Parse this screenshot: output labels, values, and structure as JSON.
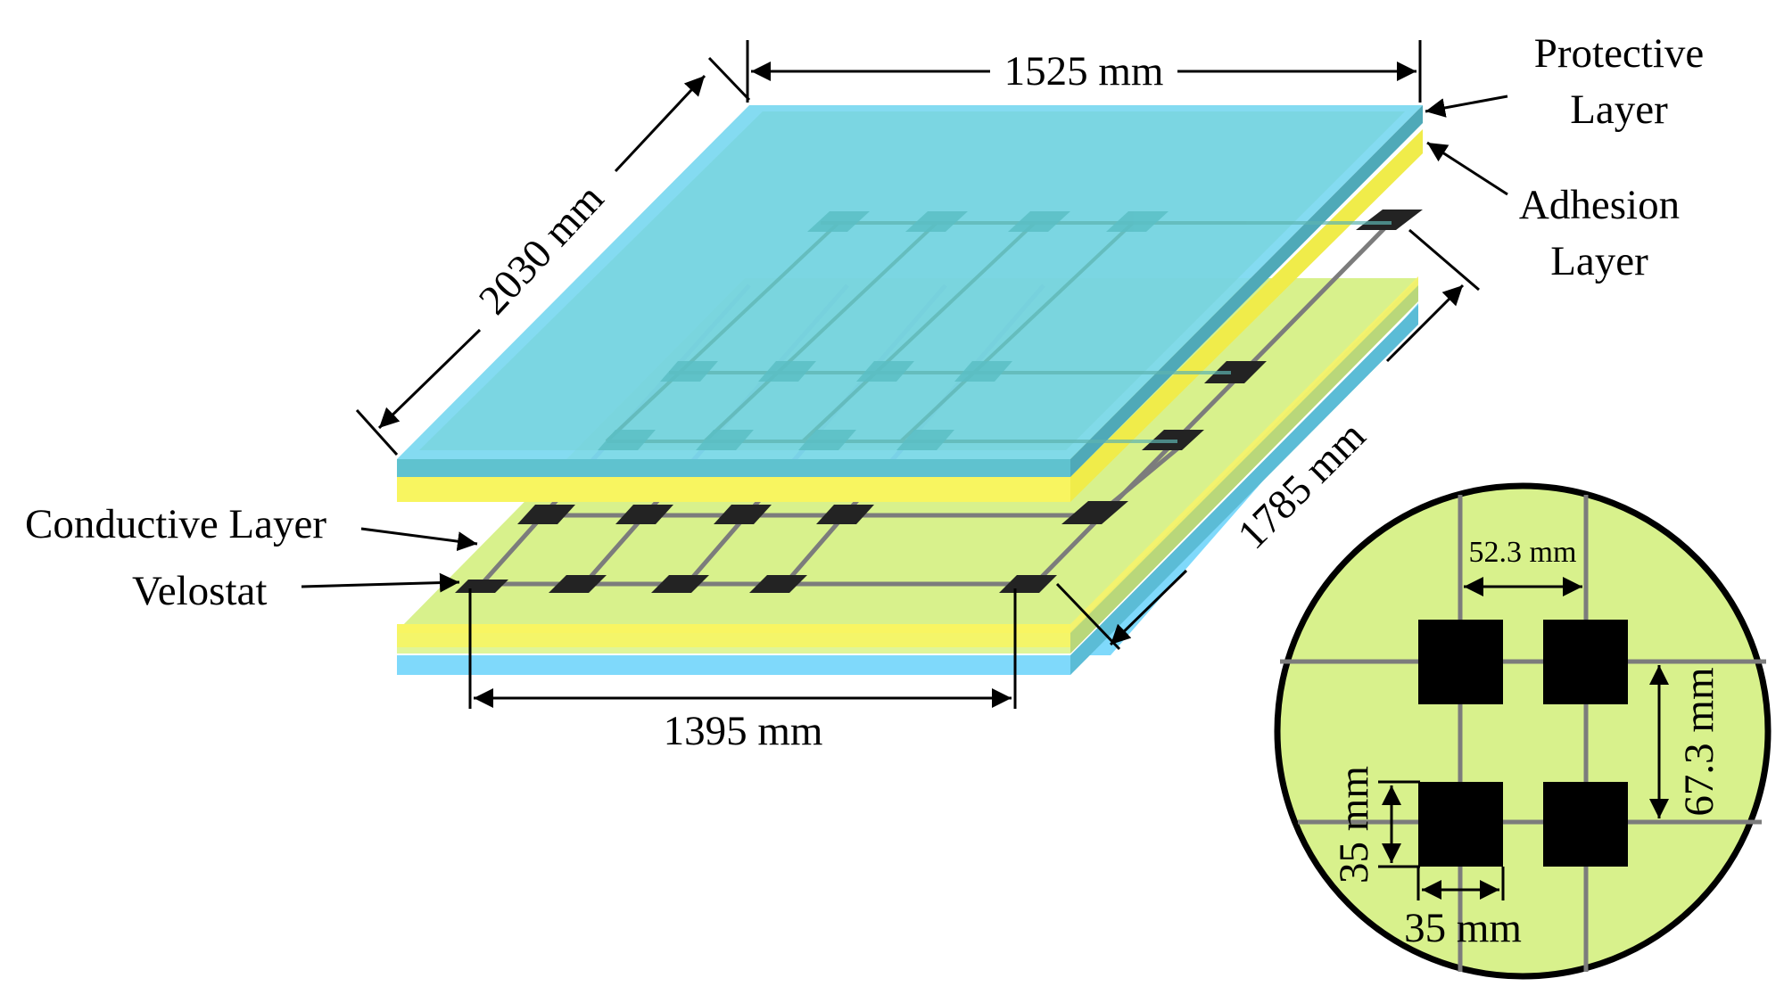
{
  "layers": {
    "protective": {
      "label_line1": "Protective",
      "label_line2": "Layer"
    },
    "adhesion": {
      "label_line1": "Adhesion",
      "label_line2": "Layer"
    },
    "conductive": {
      "label": "Conductive Layer"
    },
    "velostat": {
      "label": "Velostat"
    }
  },
  "dimensions": {
    "width_top": "1525 mm",
    "depth_left": "2030 mm",
    "depth_right": "1785 mm",
    "width_bottom": "1395 mm"
  },
  "detail": {
    "spacing_x": "52.3 mm",
    "spacing_y": "67.3 mm",
    "pad_height": "35 mm",
    "pad_width": "35 mm"
  },
  "colors": {
    "protective": "#7fd9fb",
    "protective_tint": "#74d2d6",
    "adhesion": "#f8f560",
    "mat": "#d8f18c",
    "pad": "#232323",
    "grid": "#7c7c7c"
  }
}
